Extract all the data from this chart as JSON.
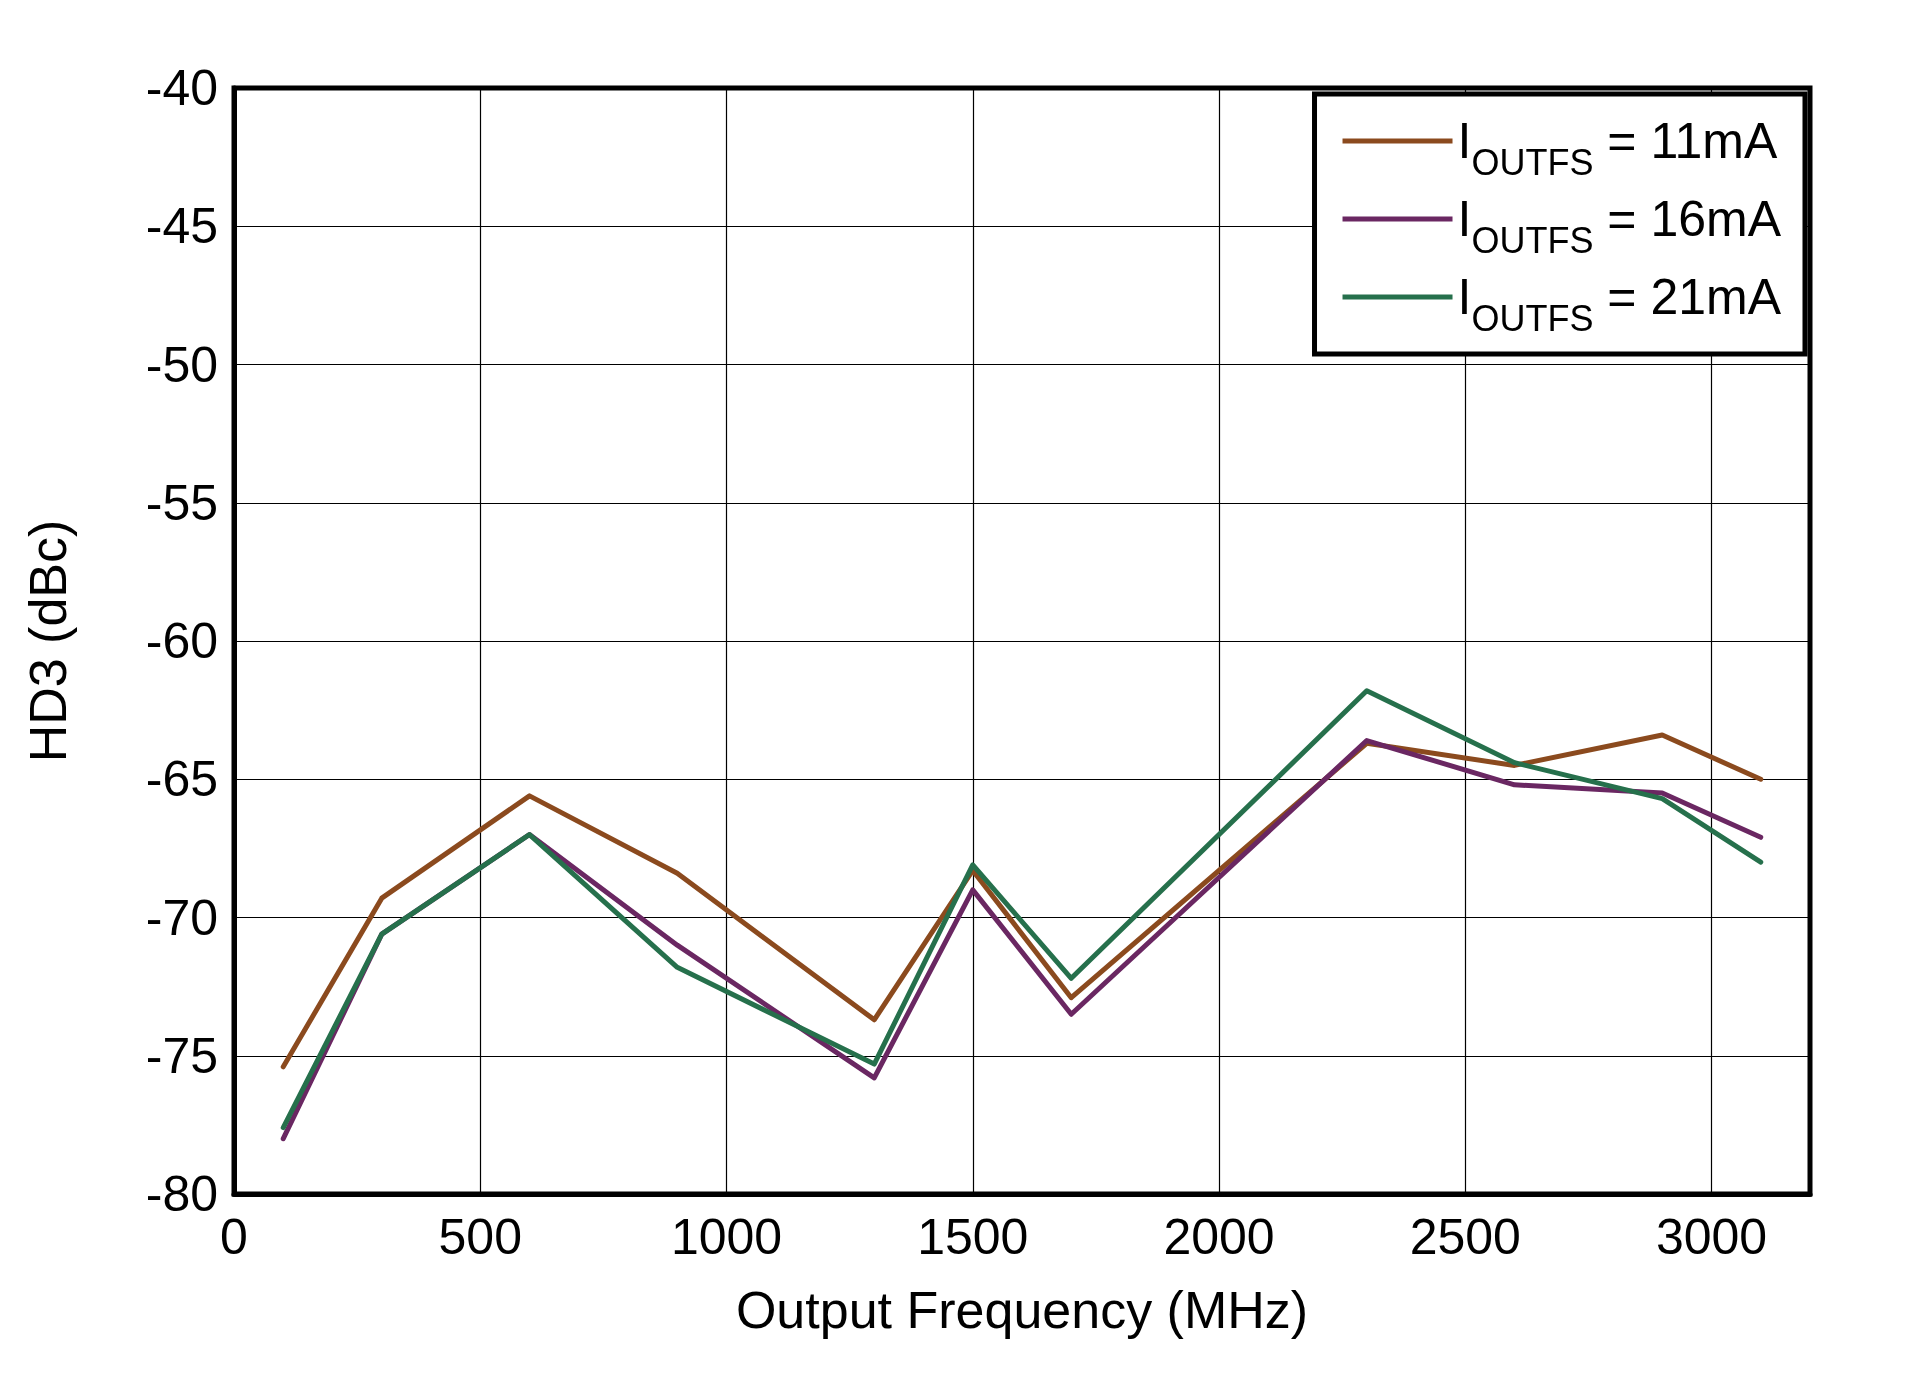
{
  "chart_data": {
    "type": "line",
    "xlabel": "Output Frequency (MHz)",
    "ylabel": "HD3 (dBc)",
    "x": [
      100,
      300,
      600,
      900,
      1300,
      1500,
      1700,
      2300,
      2600,
      2900,
      3100
    ],
    "series": [
      {
        "name": "I$_{OUTFS}$ = 11mA",
        "color": "#8b4a1e",
        "values": [
          -75.4,
          -69.3,
          -65.6,
          -68.4,
          -73.7,
          -68.3,
          -72.9,
          -63.7,
          -64.5,
          -63.4,
          -65.0
        ]
      },
      {
        "name": "I$_{OUTFS}$ = 16mA",
        "color": "#6a2762",
        "values": [
          -78.0,
          -70.6,
          -67.0,
          -71.0,
          -75.8,
          -69.0,
          -73.5,
          -63.6,
          -65.2,
          -65.5,
          -67.1
        ]
      },
      {
        "name": "I$_{OUTFS}$ = 21mA",
        "color": "#26704c",
        "values": [
          -77.6,
          -70.6,
          -67.0,
          -71.8,
          -75.3,
          -68.1,
          -72.2,
          -61.8,
          -64.4,
          -65.7,
          -68.0
        ]
      }
    ],
    "xlim": [
      0,
      3200
    ],
    "xticks": [
      0,
      500,
      1000,
      1500,
      2000,
      2500,
      3000
    ],
    "ylim": [
      -80,
      -40
    ],
    "yticks": [
      -80,
      -75,
      -70,
      -65,
      -60,
      -55,
      -50,
      -45,
      -40
    ],
    "grid": true,
    "legend": "top right",
    "marker": "none",
    "line_style": "solid"
  }
}
